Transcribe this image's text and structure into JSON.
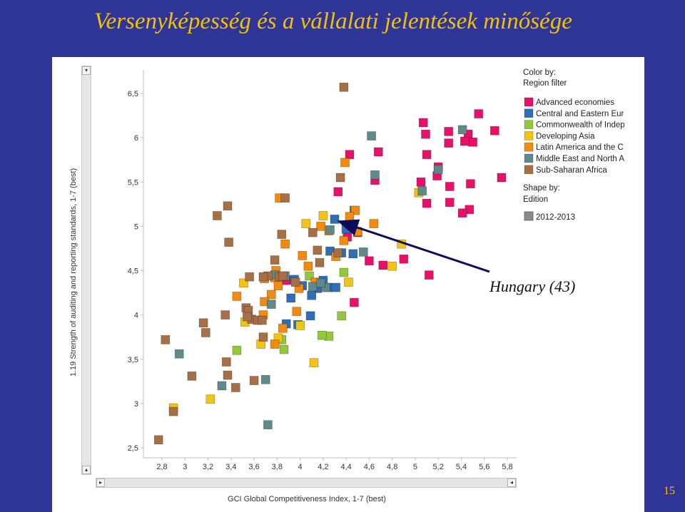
{
  "slide": {
    "title": "Versenyképesség és a vállalati jelentések minősége",
    "page_number": "15"
  },
  "annotation": {
    "label": "Hungary (43)",
    "target": [
      4.3,
      5.08
    ]
  },
  "colors": {
    "Advanced economies": "#e8106a",
    "Central and Eastern Eur": "#2f6db5",
    "Commonwealth of Indep": "#93c83a",
    "Developing Asia": "#f2c40f",
    "Latin America and the C": "#f28a0c",
    "Middle East and North A": "#5f8a8c",
    "Sub-Saharan Africa": "#a66f45"
  },
  "chart_data": {
    "type": "scatter",
    "xlabel": "GCI Global Competitiveness Index, 1-7 (best)",
    "ylabel": "1.19 Strength of auditing and reporting standards, 1-7 (best)",
    "xlim": [
      2.7,
      5.9
    ],
    "ylim": [
      2.4,
      6.7
    ],
    "x_ticks": [
      "2,8",
      "3",
      "3,2",
      "3,4",
      "3,6",
      "3,8",
      "4",
      "4,2",
      "4,4",
      "4,6",
      "4,8",
      "5",
      "5,2",
      "5,4",
      "5,6",
      "5,8"
    ],
    "y_ticks": [
      "2,5",
      "3",
      "3,5",
      "4",
      "4,5",
      "5",
      "5,5",
      "6",
      "6,5"
    ],
    "legend": {
      "color_title": "Color by:",
      "color_subtitle": "Region filter",
      "items": [
        "Advanced economies",
        "Central and Eastern Eur",
        "Commonwealth of Indep",
        "Developing Asia",
        "Latin America and the C",
        "Middle East and North A",
        "Sub-Saharan Africa"
      ],
      "shape_title": "Shape by:",
      "shape_subtitle": "Edition",
      "shape_item": "2012-2013"
    },
    "series": [
      {
        "name": "Advanced economies",
        "points": [
          [
            5.07,
            6.17
          ],
          [
            5.29,
            6.07
          ],
          [
            5.55,
            6.27
          ],
          [
            5.09,
            6.04
          ],
          [
            5.46,
            6.04
          ],
          [
            5.69,
            6.08
          ],
          [
            5.5,
            5.95
          ],
          [
            5.1,
            5.81
          ],
          [
            5.29,
            5.94
          ],
          [
            5.43,
            5.96
          ],
          [
            4.43,
            5.81
          ],
          [
            4.68,
            5.84
          ],
          [
            5.2,
            5.67
          ],
          [
            5.19,
            5.57
          ],
          [
            5.75,
            5.55
          ],
          [
            4.65,
            5.52
          ],
          [
            5.05,
            5.5
          ],
          [
            5.3,
            5.45
          ],
          [
            5.48,
            5.48
          ],
          [
            4.33,
            5.39
          ],
          [
            5.1,
            5.26
          ],
          [
            5.3,
            5.27
          ],
          [
            5.47,
            5.19
          ],
          [
            5.41,
            5.15
          ],
          [
            4.41,
            4.88
          ],
          [
            4.5,
            4.93
          ],
          [
            4.6,
            4.61
          ],
          [
            4.72,
            4.56
          ],
          [
            4.9,
            4.63
          ],
          [
            5.12,
            4.45
          ],
          [
            4.47,
            4.14
          ],
          [
            3.88,
            4.39
          ]
        ]
      },
      {
        "name": "Central and Eastern Eur",
        "points": [
          [
            4.3,
            5.08
          ],
          [
            4.47,
            5.18
          ],
          [
            4.26,
            4.72
          ],
          [
            4.46,
            4.69
          ],
          [
            4.36,
            4.7
          ],
          [
            4.4,
            4.97
          ],
          [
            4.2,
            4.39
          ],
          [
            3.95,
            4.4
          ],
          [
            4.15,
            4.3
          ],
          [
            4.24,
            4.31
          ],
          [
            4.1,
            4.22
          ],
          [
            3.92,
            4.19
          ],
          [
            4.02,
            4.33
          ],
          [
            4.09,
            3.99
          ],
          [
            3.98,
            3.89
          ],
          [
            3.88,
            3.9
          ],
          [
            4.31,
            4.31
          ]
        ]
      },
      {
        "name": "Commonwealth of Indep",
        "points": [
          [
            4.38,
            4.48
          ],
          [
            4.08,
            4.44
          ],
          [
            3.84,
            3.72
          ],
          [
            4.25,
            3.76
          ],
          [
            4.19,
            3.77
          ],
          [
            3.86,
            3.61
          ],
          [
            3.45,
            3.6
          ],
          [
            4.36,
            3.99
          ]
        ]
      },
      {
        "name": "Developing Asia",
        "points": [
          [
            4.2,
            5.12
          ],
          [
            4.05,
            5.03
          ],
          [
            5.03,
            5.38
          ],
          [
            4.88,
            4.8
          ],
          [
            3.51,
            4.36
          ],
          [
            3.52,
            3.92
          ],
          [
            3.66,
            3.67
          ],
          [
            3.81,
            3.74
          ],
          [
            4.12,
            3.46
          ],
          [
            3.22,
            3.05
          ],
          [
            2.9,
            2.95
          ],
          [
            4.42,
            4.37
          ],
          [
            4.8,
            4.55
          ],
          [
            4.0,
            3.88
          ]
        ]
      },
      {
        "name": "Latin America and the C",
        "points": [
          [
            4.39,
            5.72
          ],
          [
            4.48,
            5.18
          ],
          [
            4.43,
            5.11
          ],
          [
            4.18,
            5.0
          ],
          [
            4.25,
            4.95
          ],
          [
            4.64,
            5.03
          ],
          [
            4.38,
            4.84
          ],
          [
            3.87,
            4.8
          ],
          [
            3.79,
            4.5
          ],
          [
            3.78,
            4.42
          ],
          [
            3.69,
            4.41
          ],
          [
            3.81,
            4.33
          ],
          [
            3.75,
            4.23
          ],
          [
            3.69,
            4.15
          ],
          [
            3.45,
            4.21
          ],
          [
            3.68,
            4.0
          ],
          [
            3.85,
            3.85
          ],
          [
            3.97,
            4.04
          ],
          [
            4.07,
            4.55
          ],
          [
            4.31,
            4.66
          ],
          [
            4.13,
            4.37
          ],
          [
            3.99,
            4.3
          ],
          [
            4.02,
            4.67
          ],
          [
            3.78,
            3.67
          ],
          [
            3.82,
            5.32
          ],
          [
            4.5,
            4.94
          ]
        ]
      },
      {
        "name": "Middle East and North A",
        "points": [
          [
            4.62,
            6.02
          ],
          [
            5.41,
            6.09
          ],
          [
            5.2,
            5.64
          ],
          [
            4.65,
            5.58
          ],
          [
            5.06,
            5.4
          ],
          [
            4.26,
            4.96
          ],
          [
            4.55,
            4.71
          ],
          [
            3.87,
            4.44
          ],
          [
            3.75,
            4.12
          ],
          [
            3.78,
            4.45
          ],
          [
            4.22,
            4.31
          ],
          [
            4.11,
            4.32
          ],
          [
            4.18,
            4.36
          ],
          [
            2.95,
            3.56
          ],
          [
            3.32,
            3.2
          ],
          [
            3.72,
            2.76
          ],
          [
            3.7,
            3.27
          ]
        ]
      },
      {
        "name": "Sub-Saharan Africa",
        "points": [
          [
            4.38,
            6.57
          ],
          [
            4.35,
            5.55
          ],
          [
            3.37,
            5.23
          ],
          [
            3.28,
            5.12
          ],
          [
            3.87,
            5.32
          ],
          [
            3.38,
            4.82
          ],
          [
            3.84,
            4.91
          ],
          [
            4.11,
            4.93
          ],
          [
            3.78,
            4.62
          ],
          [
            4.15,
            4.73
          ],
          [
            3.96,
            4.37
          ],
          [
            3.82,
            4.43
          ],
          [
            3.72,
            4.44
          ],
          [
            3.68,
            4.43
          ],
          [
            3.56,
            4.43
          ],
          [
            3.53,
            4.08
          ],
          [
            3.55,
            4.05
          ],
          [
            3.58,
            3.95
          ],
          [
            3.63,
            3.94
          ],
          [
            3.67,
            3.94
          ],
          [
            3.54,
            3.98
          ],
          [
            3.35,
            4.0
          ],
          [
            3.16,
            3.91
          ],
          [
            3.18,
            3.8
          ],
          [
            2.83,
            3.72
          ],
          [
            3.36,
            3.47
          ],
          [
            3.37,
            3.32
          ],
          [
            3.06,
            3.31
          ],
          [
            3.44,
            3.18
          ],
          [
            3.6,
            3.26
          ],
          [
            2.9,
            2.91
          ],
          [
            2.77,
            2.59
          ],
          [
            4.17,
            4.59
          ],
          [
            4.33,
            4.7
          ],
          [
            3.68,
            3.75
          ],
          [
            3.85,
            4.44
          ]
        ]
      }
    ]
  }
}
